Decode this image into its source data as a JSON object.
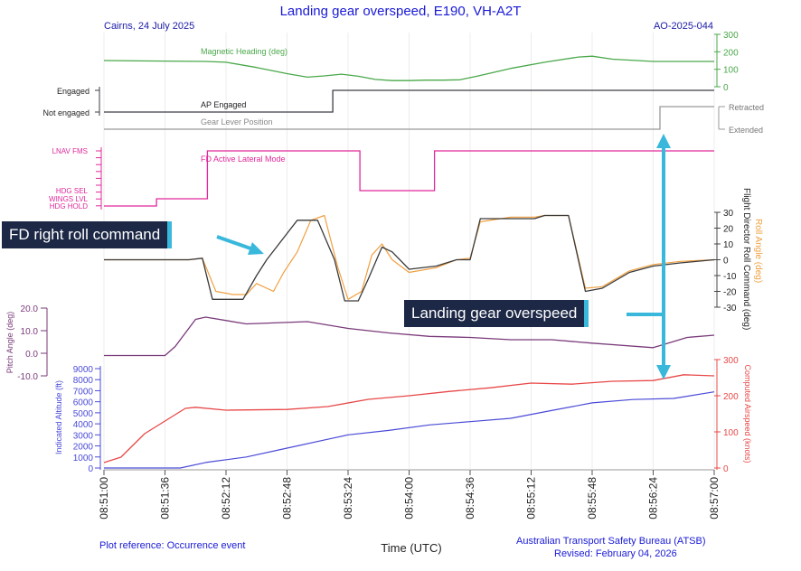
{
  "header": {
    "title": "Landing gear overspeed, E190, VH-A2T",
    "location_date": "Cairns, 24 July 2025",
    "report_id": "AO-2025-044"
  },
  "footer": {
    "plot_reference": "Plot reference: Occurrence event",
    "agency": "Australian Transport Safety Bureau (ATSB)",
    "revised": "Revised: February 04, 2026"
  },
  "annotations": {
    "fd_roll": "FD right roll command",
    "gear_overspeed": "Landing gear overspeed"
  },
  "colors": {
    "heading": "#4aa84a",
    "ap": "#3c3c46",
    "gear": "#999999",
    "fd_mode": "#e0289a",
    "fd_roll_cmd": "#3a3a3a",
    "roll": "#f0a040",
    "pitch": "#7a3a7a",
    "altitude": "#4a4ad8",
    "airspeed": "#e84848",
    "callout_bg": "#1c2846",
    "arrow": "#39b8dc"
  },
  "chart_data": {
    "type": "line",
    "xlabel": "Time (UTC)",
    "x_ticks": [
      "08:51:00",
      "08:51:36",
      "08:52:12",
      "08:52:48",
      "08:53:24",
      "08:54:00",
      "08:54:36",
      "08:55:12",
      "08:55:48",
      "08:56:24",
      "08:57:00"
    ],
    "panels": {
      "heading": {
        "series_label": "Magnetic Heading (deg)",
        "ticks": [
          "0",
          "100",
          "200",
          "300"
        ],
        "ylim": [
          0,
          300
        ],
        "x": [
          "08:51:00",
          "08:51:20",
          "08:51:36",
          "08:52:00",
          "08:52:12",
          "08:52:30",
          "08:52:48",
          "08:53:00",
          "08:53:10",
          "08:53:20",
          "08:53:30",
          "08:53:40",
          "08:53:50",
          "08:54:00",
          "08:54:10",
          "08:54:20",
          "08:54:30",
          "08:54:40",
          "08:55:00",
          "08:55:20",
          "08:55:40",
          "08:55:48",
          "08:56:00",
          "08:56:24",
          "08:57:00"
        ],
        "values": [
          150,
          148,
          147,
          145,
          140,
          110,
          75,
          55,
          62,
          72,
          60,
          42,
          35,
          35,
          38,
          38,
          40,
          60,
          105,
          140,
          170,
          175,
          158,
          145,
          145
        ]
      },
      "ap_engaged": {
        "series_label": "AP Engaged",
        "levels": [
          "Not engaged",
          "Engaged"
        ],
        "x": [
          "08:51:00",
          "08:53:14",
          "08:53:15",
          "08:57:00"
        ],
        "values": [
          "Not engaged",
          "Not engaged",
          "Engaged",
          "Engaged"
        ]
      },
      "gear_lever": {
        "series_label": "Gear Lever Position",
        "levels": [
          "Extended",
          "Retracted"
        ],
        "x": [
          "08:51:00",
          "08:56:20",
          "08:56:28",
          "08:57:00"
        ],
        "values": [
          "Extended",
          "Extended",
          "Retracted",
          "Retracted"
        ]
      },
      "fd_lateral_mode": {
        "series_label": "FD Active Lateral Mode",
        "levels": [
          "HDG HOLD",
          "WINGS LVL",
          "HDG SEL",
          "LNAV FMS"
        ],
        "x": [
          "08:51:00",
          "08:51:30",
          "08:51:31",
          "08:52:00",
          "08:52:01",
          "08:53:30",
          "08:53:31",
          "08:54:14",
          "08:54:15",
          "08:57:00"
        ],
        "values": [
          "HDG HOLD",
          "HDG HOLD",
          "WINGS LVL",
          "WINGS LVL",
          "LNAV FMS",
          "LNAV FMS",
          "HDG SEL",
          "HDG SEL",
          "LNAV FMS",
          "LNAV FMS"
        ]
      },
      "roll": {
        "left_label": "Flight Director Roll Command (deg)",
        "right_label": "Roll Angle (deg)",
        "ticks": [
          "-30",
          "-20",
          "-10",
          "0",
          "10",
          "20",
          "30"
        ],
        "ylim": [
          -30,
          30
        ],
        "fd_roll_command": {
          "x": [
            "08:51:00",
            "08:51:50",
            "08:51:58",
            "08:52:04",
            "08:52:22",
            "08:52:30",
            "08:52:36",
            "08:52:54",
            "08:53:06",
            "08:53:16",
            "08:53:22",
            "08:53:30",
            "08:53:36",
            "08:53:44",
            "08:53:50",
            "08:54:00",
            "08:54:16",
            "08:54:28",
            "08:54:36",
            "08:54:42",
            "08:55:00",
            "08:55:14",
            "08:55:20",
            "08:55:34",
            "08:55:44",
            "08:55:54",
            "08:56:10",
            "08:56:24",
            "08:56:40",
            "08:57:00"
          ],
          "values": [
            0,
            0,
            1,
            -25,
            -25,
            -10,
            0,
            25,
            25,
            0,
            -26,
            -26,
            -12,
            8,
            5,
            -6,
            -4,
            0,
            0,
            26,
            26,
            26,
            28,
            28,
            -20,
            -18,
            -8,
            -4,
            -2,
            0
          ]
        },
        "roll_angle": {
          "x": [
            "08:51:00",
            "08:51:50",
            "08:51:58",
            "08:52:06",
            "08:52:16",
            "08:52:24",
            "08:52:30",
            "08:52:40",
            "08:52:46",
            "08:52:54",
            "08:53:02",
            "08:53:10",
            "08:53:18",
            "08:53:24",
            "08:53:32",
            "08:53:38",
            "08:53:44",
            "08:53:50",
            "08:54:00",
            "08:54:16",
            "08:54:28",
            "08:54:36",
            "08:54:42",
            "08:55:00",
            "08:55:14",
            "08:55:20",
            "08:55:34",
            "08:55:44",
            "08:55:54",
            "08:56:10",
            "08:56:24",
            "08:56:40",
            "08:57:00"
          ],
          "values": [
            0,
            0,
            1,
            -20,
            -22,
            -22,
            -15,
            -20,
            -8,
            5,
            25,
            28,
            -5,
            -25,
            -20,
            3,
            10,
            0,
            -8,
            -5,
            0,
            1,
            24,
            27,
            27,
            28,
            28,
            -18,
            -17,
            -7,
            -3,
            -1,
            0
          ]
        }
      },
      "pitch": {
        "series_label": "Pitch Angle (deg)",
        "ticks": [
          "-10.0",
          "0.0",
          "10.0",
          "20.0"
        ],
        "ylim": [
          -10,
          20
        ],
        "x": [
          "08:51:00",
          "08:51:36",
          "08:51:42",
          "08:51:54",
          "08:52:00",
          "08:52:24",
          "08:53:00",
          "08:53:24",
          "08:53:48",
          "08:54:12",
          "08:54:36",
          "08:55:00",
          "08:55:24",
          "08:55:48",
          "08:56:24",
          "08:56:44",
          "08:57:00"
        ],
        "values": [
          -1,
          -1,
          3,
          15,
          16,
          13,
          14,
          11,
          9,
          7.5,
          7,
          6,
          6,
          4.5,
          2.5,
          7,
          8
        ]
      },
      "altitude": {
        "series_label": "Indicated Altitude (ft)",
        "ticks": [
          "0",
          "1000",
          "2000",
          "3000",
          "4000",
          "5000",
          "6000",
          "7000",
          "8000",
          "9000"
        ],
        "ylim": [
          0,
          9000
        ],
        "x": [
          "08:51:00",
          "08:51:45",
          "08:52:00",
          "08:52:24",
          "08:52:48",
          "08:53:12",
          "08:53:24",
          "08:53:48",
          "08:54:12",
          "08:54:36",
          "08:55:00",
          "08:55:24",
          "08:55:48",
          "08:56:12",
          "08:56:36",
          "08:57:00"
        ],
        "values": [
          0,
          0,
          500,
          1000,
          1800,
          2600,
          3000,
          3400,
          3900,
          4200,
          4500,
          5200,
          5900,
          6200,
          6300,
          6900
        ]
      },
      "airspeed": {
        "series_label": "Computed Airspeed (knots)",
        "ticks": [
          "0",
          "100",
          "200",
          "300"
        ],
        "ylim": [
          0,
          300
        ],
        "x": [
          "08:51:00",
          "08:51:10",
          "08:51:24",
          "08:51:48",
          "08:51:54",
          "08:52:12",
          "08:52:48",
          "08:53:12",
          "08:53:36",
          "08:54:00",
          "08:54:24",
          "08:54:48",
          "08:55:12",
          "08:55:36",
          "08:56:00",
          "08:56:24",
          "08:56:42",
          "08:57:00"
        ],
        "values": [
          15,
          30,
          95,
          165,
          168,
          160,
          162,
          170,
          190,
          200,
          212,
          222,
          235,
          232,
          240,
          242,
          258,
          255
        ]
      }
    }
  }
}
